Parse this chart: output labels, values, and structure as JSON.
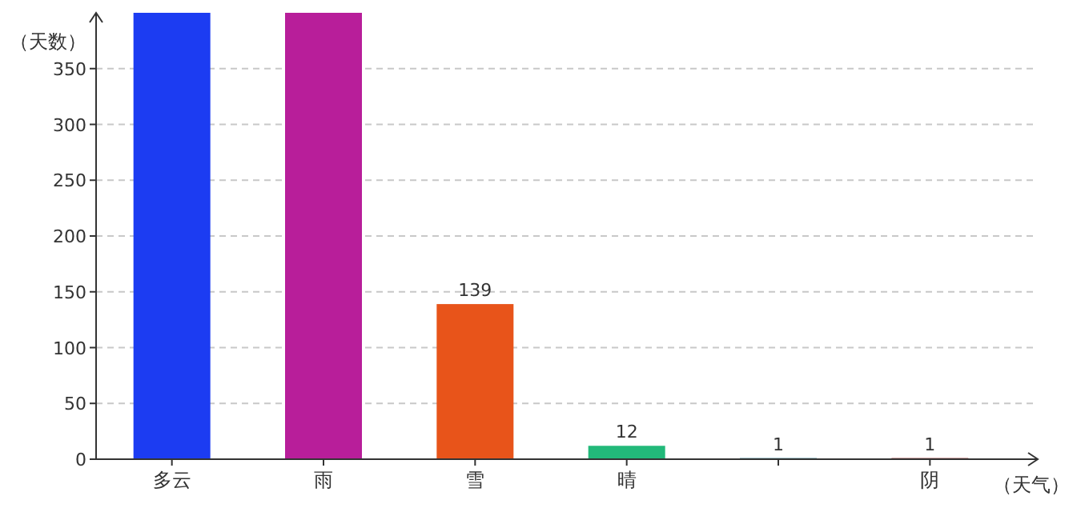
{
  "chart_data": {
    "type": "bar",
    "ylabel": "（天数）",
    "xlabel": "（天气）",
    "categories": [
      "多云",
      "雨",
      "雪",
      "晴",
      null,
      "阴"
    ],
    "values": [
      400,
      400,
      139,
      12,
      1,
      1
    ],
    "colors": [
      "#1c3cf2",
      "#b81e9a",
      "#e8541a",
      "#22b97a",
      "#1f6f80",
      "#8c1c1c"
    ],
    "value_labels": [
      null,
      null,
      "139",
      "12",
      "1",
      "1"
    ],
    "ylim": [
      0,
      400
    ],
    "yticks": [
      0,
      50,
      100,
      150,
      200,
      250,
      300,
      350
    ],
    "grid": "y"
  }
}
